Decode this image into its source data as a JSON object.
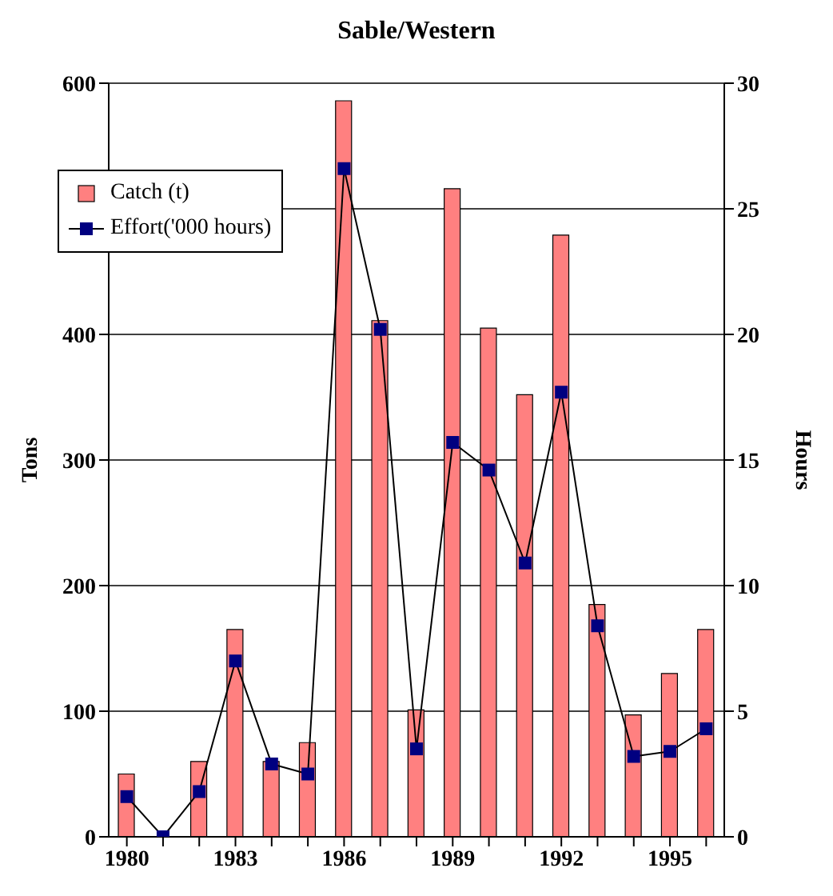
{
  "chart_data": {
    "type": "bar",
    "title": "Sable/Western",
    "ylabel": "Tons",
    "y2label": "Hours",
    "categories": [
      "1980",
      null,
      null,
      "1983",
      null,
      null,
      "1986",
      null,
      null,
      "1989",
      null,
      null,
      "1992",
      null,
      null,
      "1995",
      null
    ],
    "series": [
      {
        "name": "Catch (t)",
        "color": "#ff8080",
        "values": [
          50,
          0,
          60,
          165,
          60,
          75,
          586,
          411,
          101,
          516,
          405,
          352,
          479,
          185,
          97,
          130,
          165
        ]
      },
      {
        "name": "Effort('000 hours)",
        "type": "line",
        "axis": "y2",
        "color": "#000080",
        "values": [
          1.6,
          0,
          1.8,
          7.0,
          2.9,
          2.5,
          26.6,
          20.2,
          3.5,
          15.7,
          14.6,
          10.9,
          17.7,
          8.4,
          3.2,
          3.4,
          4.3
        ]
      }
    ],
    "ylim": [
      0,
      600
    ],
    "yticks": [
      0,
      100,
      200,
      300,
      400,
      {
        "value": 500,
        "label": null
      },
      600
    ],
    "y2lim": [
      0,
      30
    ],
    "y2ticks": [
      0,
      5,
      10,
      15,
      20,
      25,
      30
    ],
    "grid": "y",
    "legend": "top left",
    "marker": "square",
    "line_style": "solid"
  }
}
